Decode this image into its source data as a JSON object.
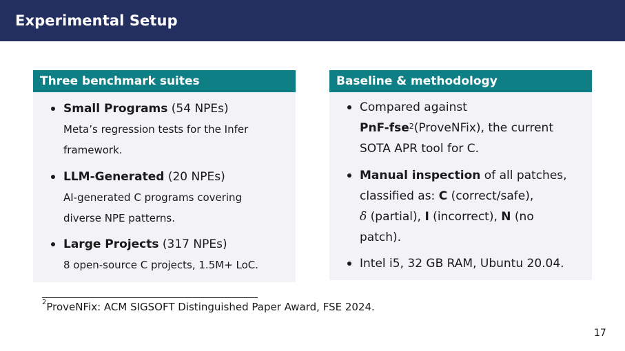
{
  "slide": {
    "title": "Experimental Setup",
    "page_number": "17"
  },
  "left_block": {
    "header": "Three benchmark suites",
    "items": [
      {
        "name": "Small Programs",
        "count": "(54 NPEs)",
        "desc_lines": [
          "Meta’s regression tests for the Infer",
          "framework."
        ]
      },
      {
        "name": "LLM-Generated",
        "count": "(20 NPEs)",
        "desc_lines": [
          "AI-generated C programs covering",
          "diverse NPE patterns."
        ]
      },
      {
        "name": "Large Projects",
        "count": "(317 NPEs)",
        "desc_lines": [
          "8 open-source C projects, 1.5M+ LoC."
        ]
      }
    ]
  },
  "right_block": {
    "header": "Baseline & methodology",
    "item1": {
      "line1": "Compared against",
      "tool": "PnF-fse",
      "footnote_mark": "2",
      "line2_rest": "(ProveNFix), the current",
      "line3": "SOTA APR tool for C."
    },
    "item2": {
      "bold": "Manual inspection",
      "line1_rest": " of all patches,",
      "line2_pre": "classified as: ",
      "c": "C",
      "c_desc": " (correct/safe),",
      "delta": "δ",
      "delta_desc": " (partial), ",
      "i": "I",
      "i_desc": " (incorrect), ",
      "n": "N",
      "n_desc": " (no",
      "line4": "patch)."
    },
    "item3": "Intel i5, 32 GB RAM, Ubuntu 20.04."
  },
  "footnote": {
    "mark": "2",
    "text": "ProveNFix: ACM SIGSOFT Distinguished Paper Award, FSE 2024."
  }
}
